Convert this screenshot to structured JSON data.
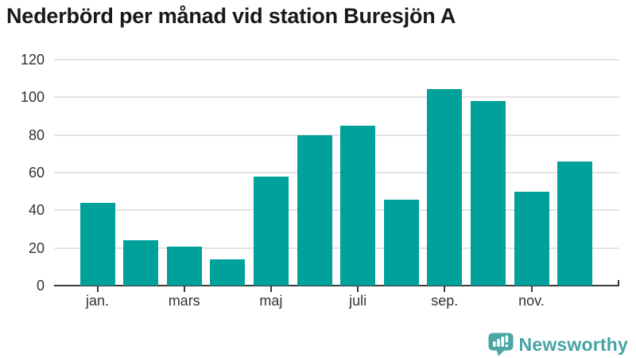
{
  "chart_data": {
    "type": "bar",
    "title": "Nederbörd per månad vid station Buresjön A",
    "values": [
      44,
      24,
      20.5,
      14,
      58,
      80,
      85,
      45.5,
      104.5,
      98,
      50,
      66
    ],
    "n_bars": 12,
    "x_ticks": [
      {
        "index": 0,
        "label": "jan."
      },
      {
        "index": 2,
        "label": "mars"
      },
      {
        "index": 4,
        "label": "maj"
      },
      {
        "index": 6,
        "label": "juli"
      },
      {
        "index": 8,
        "label": "sep."
      },
      {
        "index": 10,
        "label": "nov."
      }
    ],
    "ylim": [
      0,
      120
    ],
    "ytick_step": 20,
    "ytick_labels": [
      "0",
      "20",
      "40",
      "60",
      "80",
      "100",
      "120"
    ],
    "grid": true,
    "legend": "none",
    "bar_color": "#00a19a",
    "gridline_color": "#e4e4e4",
    "axis_color": "#3a3a3a",
    "label_color": "#333333",
    "title_color": "#191919"
  },
  "footer": {
    "brand": "Newsworthy",
    "brand_color": "#46a3a3",
    "logo_icon": "newsworthy-chart-bubble-icon",
    "logo_color": "#4ba6a4"
  }
}
